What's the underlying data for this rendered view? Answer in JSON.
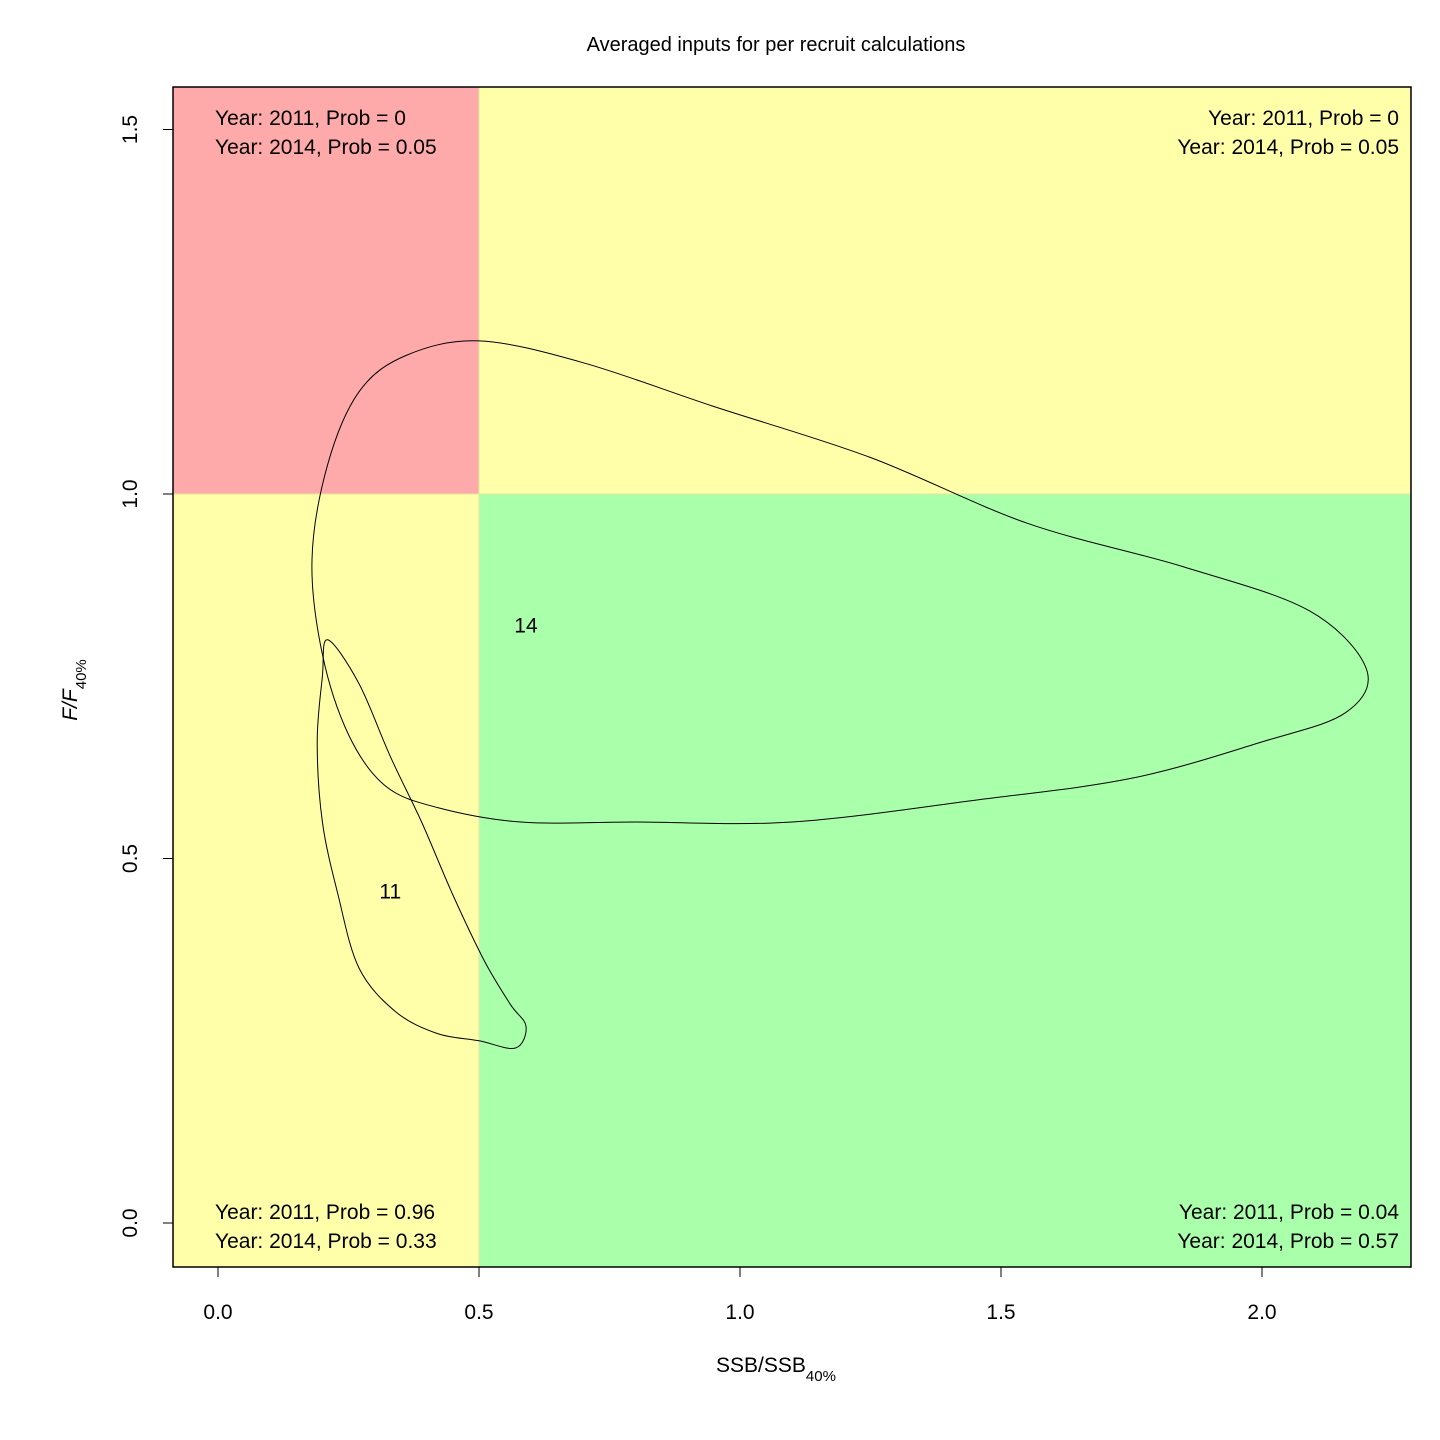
{
  "chart_data": {
    "type": "area",
    "title": "Averaged inputs for per recruit calculations",
    "xlabel": {
      "main": "SSB/SSB",
      "sub": "40%"
    },
    "ylabel": {
      "main": "F/F",
      "sub": "40%"
    },
    "xlim": [
      -0.09,
      2.29
    ],
    "ylim": [
      -0.06,
      1.56
    ],
    "x_ticks": [
      {
        "value": 0.0,
        "label": "0.0"
      },
      {
        "value": 0.5,
        "label": "0.5"
      },
      {
        "value": 1.0,
        "label": "1.0"
      },
      {
        "value": 1.5,
        "label": "1.5"
      },
      {
        "value": 2.0,
        "label": "2.0"
      }
    ],
    "y_ticks": [
      {
        "value": 0.0,
        "label": "0.0"
      },
      {
        "value": 0.5,
        "label": "0.5"
      },
      {
        "value": 1.0,
        "label": "1.0"
      },
      {
        "value": 1.5,
        "label": "1.5"
      }
    ],
    "reference_lines": {
      "x": 0.5,
      "y": 1.0
    },
    "quadrants": [
      {
        "id": "top-left",
        "x": [
          -0.09,
          0.5
        ],
        "y": [
          1.0,
          1.56
        ],
        "color": "#FFAAAA",
        "lines": [
          "Year: 2011, Prob = 0",
          "Year: 2014, Prob = 0.05"
        ]
      },
      {
        "id": "top-right",
        "x": [
          0.5,
          2.29
        ],
        "y": [
          1.0,
          1.56
        ],
        "color": "#FFFFAA",
        "lines": [
          "Year: 2011, Prob = 0",
          "Year: 2014, Prob = 0.05"
        ]
      },
      {
        "id": "bottom-left",
        "x": [
          -0.09,
          0.5
        ],
        "y": [
          -0.06,
          1.0
        ],
        "color": "#FFFFAA",
        "lines": [
          "Year: 2011, Prob = 0.96",
          "Year: 2014, Prob = 0.33"
        ]
      },
      {
        "id": "bottom-right",
        "x": [
          0.5,
          2.29
        ],
        "y": [
          -0.06,
          1.0
        ],
        "color": "#AAFFAA",
        "lines": [
          "Year: 2011, Prob = 0.04",
          "Year: 2014, Prob = 0.57"
        ]
      }
    ],
    "contours": [
      {
        "label": "11",
        "label_pos": [
          0.33,
          0.445
        ],
        "points": [
          [
            0.21,
            0.8
          ],
          [
            0.27,
            0.74
          ],
          [
            0.33,
            0.64
          ],
          [
            0.39,
            0.55
          ],
          [
            0.45,
            0.45
          ],
          [
            0.51,
            0.36
          ],
          [
            0.56,
            0.3
          ],
          [
            0.59,
            0.27
          ],
          [
            0.57,
            0.24
          ],
          [
            0.5,
            0.25
          ],
          [
            0.42,
            0.26
          ],
          [
            0.34,
            0.29
          ],
          [
            0.27,
            0.35
          ],
          [
            0.23,
            0.45
          ],
          [
            0.2,
            0.55
          ],
          [
            0.19,
            0.66
          ],
          [
            0.2,
            0.75
          ],
          [
            0.21,
            0.8
          ]
        ]
      },
      {
        "label": "14",
        "label_pos": [
          0.59,
          0.81
        ],
        "points": [
          [
            0.5,
            1.21
          ],
          [
            0.7,
            1.18
          ],
          [
            0.95,
            1.12
          ],
          [
            1.25,
            1.05
          ],
          [
            1.55,
            0.96
          ],
          [
            1.85,
            0.9
          ],
          [
            2.09,
            0.84
          ],
          [
            2.2,
            0.76
          ],
          [
            2.16,
            0.7
          ],
          [
            2.0,
            0.66
          ],
          [
            1.75,
            0.61
          ],
          [
            1.45,
            0.58
          ],
          [
            1.1,
            0.55
          ],
          [
            0.8,
            0.55
          ],
          [
            0.58,
            0.55
          ],
          [
            0.42,
            0.57
          ],
          [
            0.32,
            0.6
          ],
          [
            0.25,
            0.67
          ],
          [
            0.2,
            0.78
          ],
          [
            0.18,
            0.91
          ],
          [
            0.21,
            1.04
          ],
          [
            0.27,
            1.14
          ],
          [
            0.36,
            1.19
          ],
          [
            0.5,
            1.21
          ]
        ]
      }
    ]
  }
}
